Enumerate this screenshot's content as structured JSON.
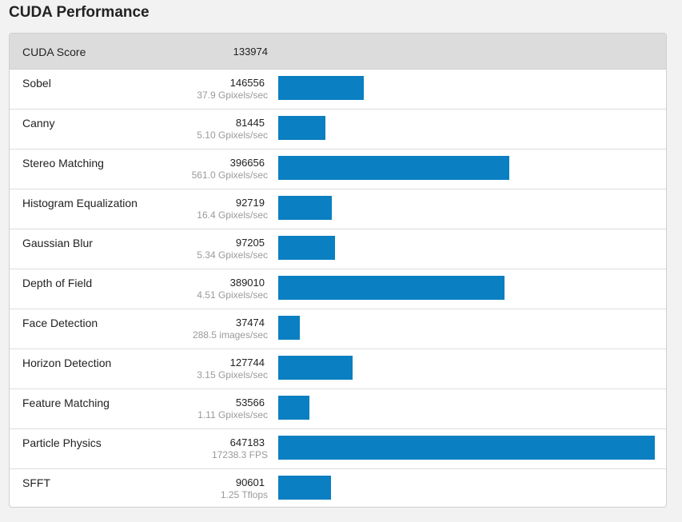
{
  "page": {
    "title": "CUDA Performance"
  },
  "summary": {
    "label": "CUDA Score",
    "score": "133974"
  },
  "colors": {
    "bar": "#0a7fc1",
    "header_bg": "#dcdcdc",
    "rate_text": "#9a9a9a"
  },
  "benchmarks": [
    {
      "name": "Sobel",
      "score": "146556",
      "rate": "37.9 Gpixels/sec",
      "value": 146556
    },
    {
      "name": "Canny",
      "score": "81445",
      "rate": "5.10 Gpixels/sec",
      "value": 81445
    },
    {
      "name": "Stereo Matching",
      "score": "396656",
      "rate": "561.0 Gpixels/sec",
      "value": 396656
    },
    {
      "name": "Histogram Equalization",
      "score": "92719",
      "rate": "16.4 Gpixels/sec",
      "value": 92719
    },
    {
      "name": "Gaussian Blur",
      "score": "97205",
      "rate": "5.34 Gpixels/sec",
      "value": 97205
    },
    {
      "name": "Depth of Field",
      "score": "389010",
      "rate": "4.51 Gpixels/sec",
      "value": 389010
    },
    {
      "name": "Face Detection",
      "score": "37474",
      "rate": "288.5 images/sec",
      "value": 37474
    },
    {
      "name": "Horizon Detection",
      "score": "127744",
      "rate": "3.15 Gpixels/sec",
      "value": 127744
    },
    {
      "name": "Feature Matching",
      "score": "53566",
      "rate": "1.11 Gpixels/sec",
      "value": 53566
    },
    {
      "name": "Particle Physics",
      "score": "647183",
      "rate": "17238.3 FPS",
      "value": 647183
    },
    {
      "name": "SFFT",
      "score": "90601",
      "rate": "1.25 Tflops",
      "value": 90601
    }
  ]
}
